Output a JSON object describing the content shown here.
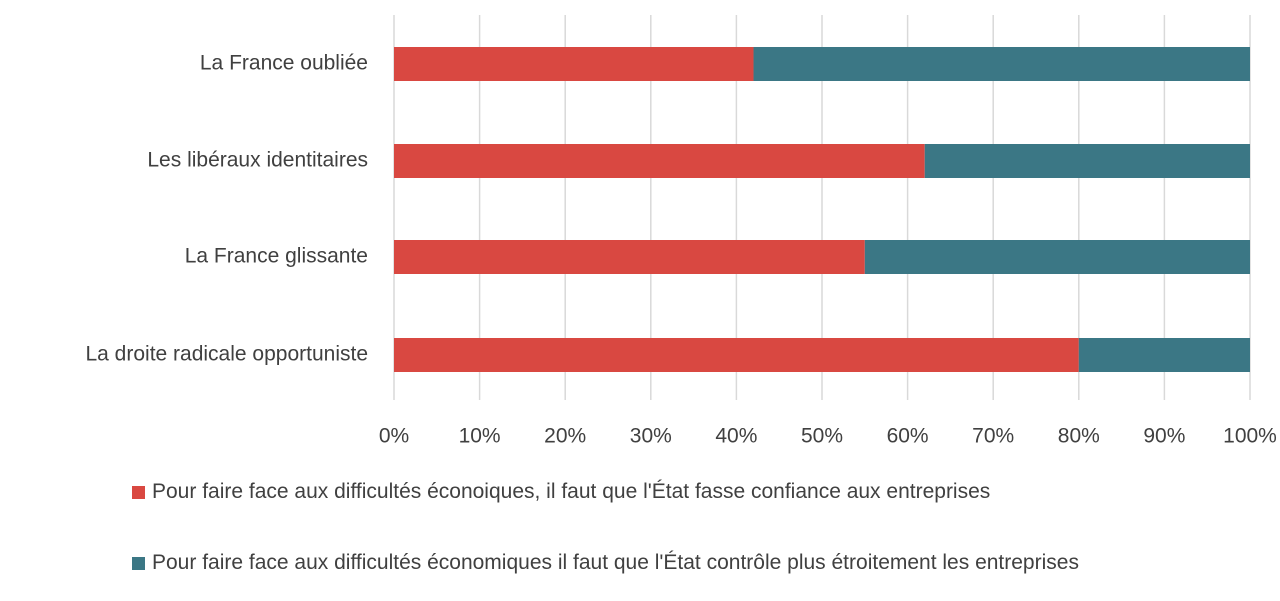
{
  "chart_data": {
    "type": "stacked_bar_horizontal",
    "categories": [
      "La France oubliée",
      "Les libéraux identitaires",
      "La France glissante",
      "La droite radicale opportuniste"
    ],
    "series": [
      {
        "name": "Pour faire face aux difficultés éconoiques, il faut que l'État fasse confiance aux entreprises",
        "color": "#d94841",
        "values": [
          42,
          62,
          55,
          80
        ]
      },
      {
        "name": "Pour faire face aux difficultés économiques il faut que l'État contrôle plus étroitement les entreprises",
        "color": "#3b7785",
        "values": [
          58,
          38,
          45,
          20
        ]
      }
    ],
    "xlim": [
      0,
      100
    ],
    "xticks": [
      {
        "value": 0,
        "label": "0%"
      },
      {
        "value": 10,
        "label": "10%"
      },
      {
        "value": 20,
        "label": "20%"
      },
      {
        "value": 30,
        "label": "30%"
      },
      {
        "value": 40,
        "label": "40%"
      },
      {
        "value": 50,
        "label": "50%"
      },
      {
        "value": 60,
        "label": "60%"
      },
      {
        "value": 70,
        "label": "70%"
      },
      {
        "value": 80,
        "label": "80%"
      },
      {
        "value": 90,
        "label": "90%"
      },
      {
        "value": 100,
        "label": "100%"
      }
    ],
    "grid": true
  }
}
